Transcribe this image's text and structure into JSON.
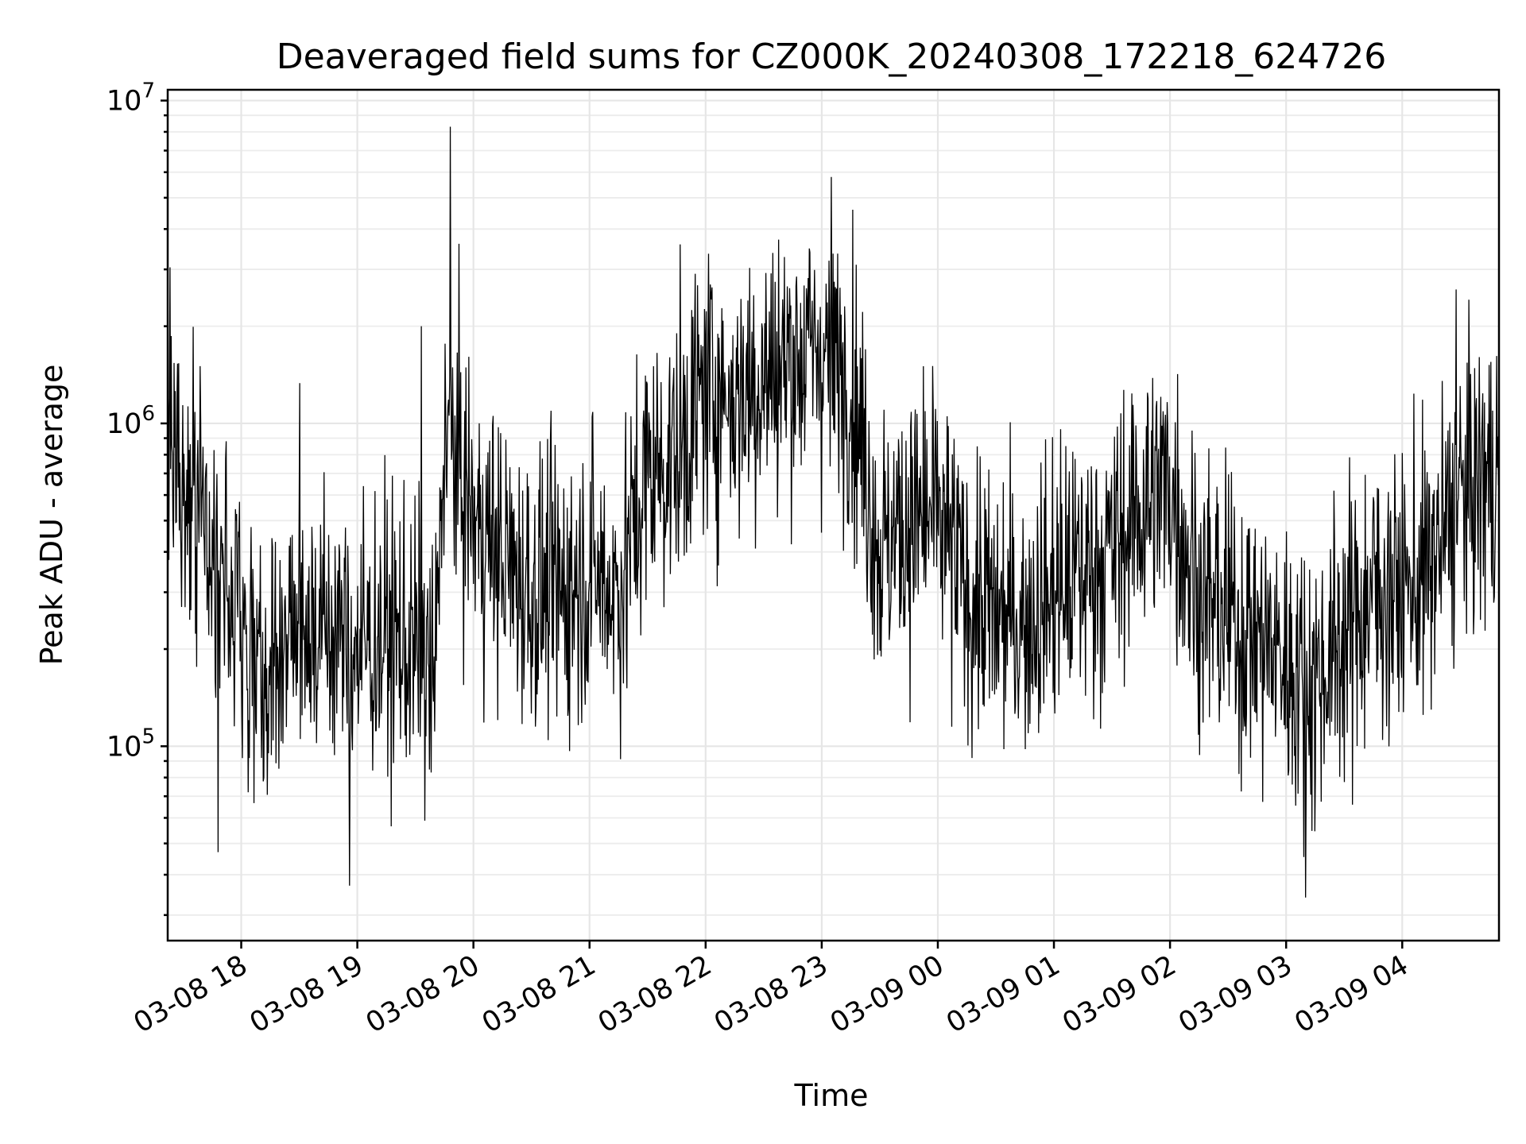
{
  "chart_data": {
    "type": "line",
    "title": "Deaveraged field sums for CZ000K_20240308_172218_624726",
    "xlabel": "Time",
    "ylabel": "Peak ADU - average",
    "yscale": "log",
    "ylim": [
      25000,
      10800000
    ],
    "xlim": [
      "2024-03-08 17:22",
      "2024-03-09 04:50"
    ],
    "grid": true,
    "x_ticks": [
      {
        "t": "2024-03-08 18:00",
        "label": "03-08 18"
      },
      {
        "t": "2024-03-08 19:00",
        "label": "03-08 19"
      },
      {
        "t": "2024-03-08 20:00",
        "label": "03-08 20"
      },
      {
        "t": "2024-03-08 21:00",
        "label": "03-08 21"
      },
      {
        "t": "2024-03-08 22:00",
        "label": "03-08 22"
      },
      {
        "t": "2024-03-08 23:00",
        "label": "03-08 23"
      },
      {
        "t": "2024-03-09 00:00",
        "label": "03-09 00"
      },
      {
        "t": "2024-03-09 01:00",
        "label": "03-09 01"
      },
      {
        "t": "2024-03-09 02:00",
        "label": "03-09 02"
      },
      {
        "t": "2024-03-09 03:00",
        "label": "03-09 03"
      },
      {
        "t": "2024-03-09 04:00",
        "label": "03-09 04"
      }
    ],
    "y_ticks": [
      {
        "value": 100000,
        "base": "10",
        "exp": "5"
      },
      {
        "value": 1000000,
        "base": "10",
        "exp": "6"
      },
      {
        "value": 10000000,
        "base": "10",
        "exp": "7"
      }
    ],
    "series": [
      {
        "color": "#000000",
        "x": [
          "2024-03-08 17:22",
          "2024-03-08 17:30",
          "2024-03-08 17:45",
          "2024-03-08 18:00",
          "2024-03-08 18:15",
          "2024-03-08 18:30",
          "2024-03-08 18:45",
          "2024-03-08 19:00",
          "2024-03-08 19:15",
          "2024-03-08 19:30",
          "2024-03-08 19:40",
          "2024-03-08 19:45",
          "2024-03-08 20:00",
          "2024-03-08 20:15",
          "2024-03-08 20:30",
          "2024-03-08 20:45",
          "2024-03-08 21:00",
          "2024-03-08 21:15",
          "2024-03-08 21:30",
          "2024-03-08 21:45",
          "2024-03-08 22:00",
          "2024-03-08 22:15",
          "2024-03-08 22:30",
          "2024-03-08 22:45",
          "2024-03-08 23:00",
          "2024-03-08 23:15",
          "2024-03-08 23:30",
          "2024-03-08 23:45",
          "2024-03-09 00:00",
          "2024-03-09 00:15",
          "2024-03-09 00:30",
          "2024-03-09 00:45",
          "2024-03-09 01:00",
          "2024-03-09 01:15",
          "2024-03-09 01:30",
          "2024-03-09 01:45",
          "2024-03-09 02:00",
          "2024-03-09 02:15",
          "2024-03-09 02:30",
          "2024-03-09 02:45",
          "2024-03-09 03:00",
          "2024-03-09 03:15",
          "2024-03-09 03:30",
          "2024-03-09 03:45",
          "2024-03-09 04:00",
          "2024-03-09 04:15",
          "2024-03-09 04:30",
          "2024-03-09 04:50"
        ],
        "values": [
          1000000,
          800000,
          400000,
          250000,
          180000,
          250000,
          230000,
          200000,
          220000,
          200000,
          150000,
          1000000,
          500000,
          380000,
          300000,
          300000,
          350000,
          300000,
          700000,
          800000,
          1300000,
          1200000,
          1400000,
          1600000,
          1700000,
          1400000,
          400000,
          500000,
          500000,
          300000,
          250000,
          250000,
          300000,
          350000,
          400000,
          550000,
          650000,
          300000,
          250000,
          220000,
          180000,
          160000,
          220000,
          300000,
          300000,
          350000,
          600000,
          700000
        ],
        "extremes": [
          {
            "t": "2024-03-08 19:48",
            "value": 8300000
          },
          {
            "t": "2024-03-08 23:05",
            "value": 5800000
          },
          {
            "t": "2024-03-08 19:33",
            "value": 2000000
          },
          {
            "t": "2024-03-08 18:56",
            "value": 37000
          },
          {
            "t": "2024-03-09 03:10",
            "value": 34000
          },
          {
            "t": "2024-03-08 17:48",
            "value": 47000
          },
          {
            "t": "2024-03-09 04:28",
            "value": 2600000
          }
        ]
      }
    ]
  }
}
